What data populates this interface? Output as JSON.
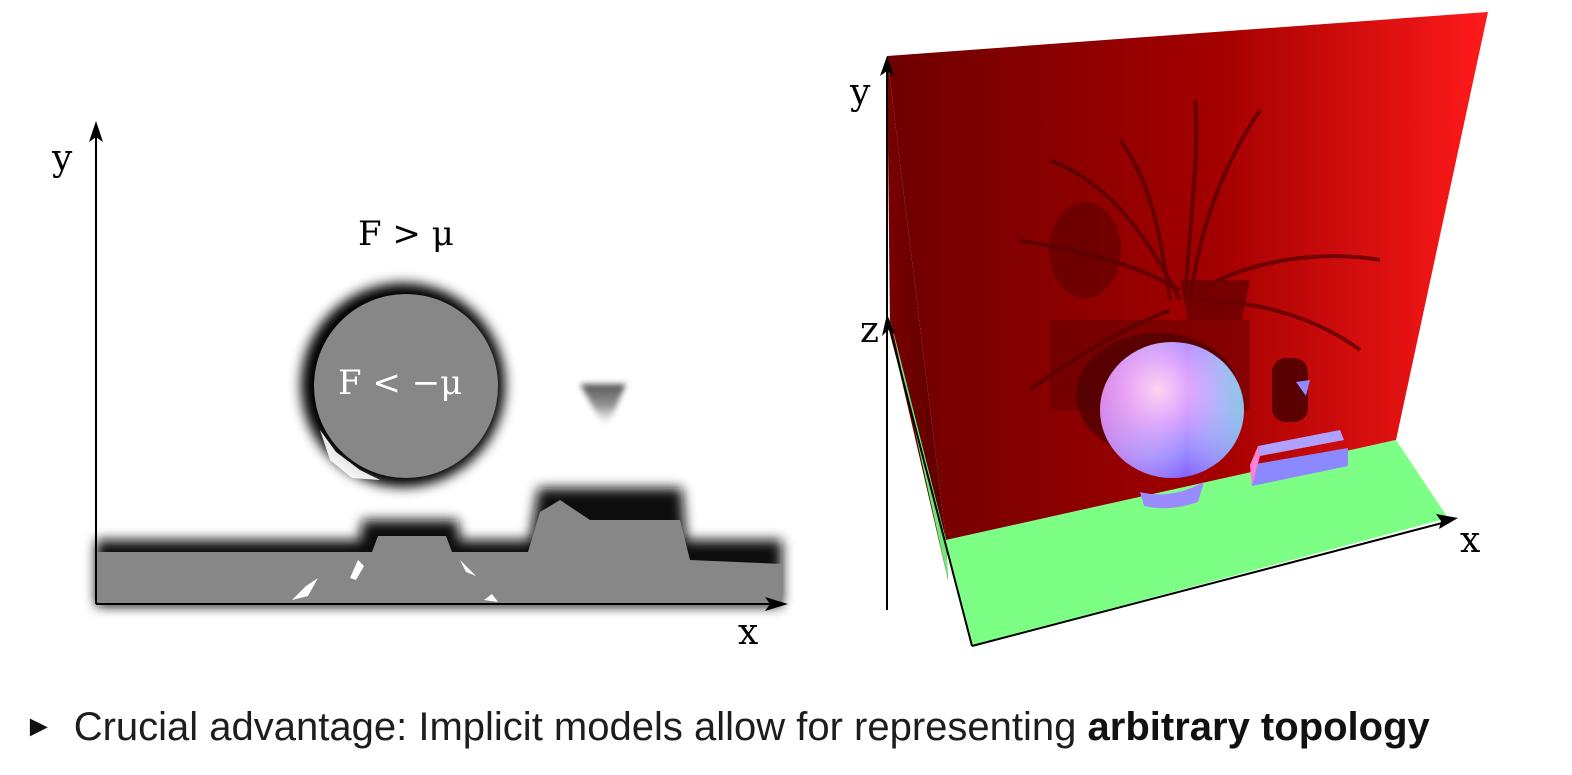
{
  "left_panel": {
    "axis_y_label": "y",
    "axis_x_label": "x",
    "label_outside": "F > μ",
    "label_inside": "F < −μ"
  },
  "right_panel": {
    "axis_y_label": "y",
    "axis_z_label": "z",
    "axis_x_label": "x",
    "colors": {
      "back_wall": "#8a0000",
      "floor": "#7dff86"
    }
  },
  "bullet": {
    "marker": "►",
    "text_prefix": "Crucial advantage: Implicit models allow for representing ",
    "text_bold": "arbitrary topology"
  }
}
